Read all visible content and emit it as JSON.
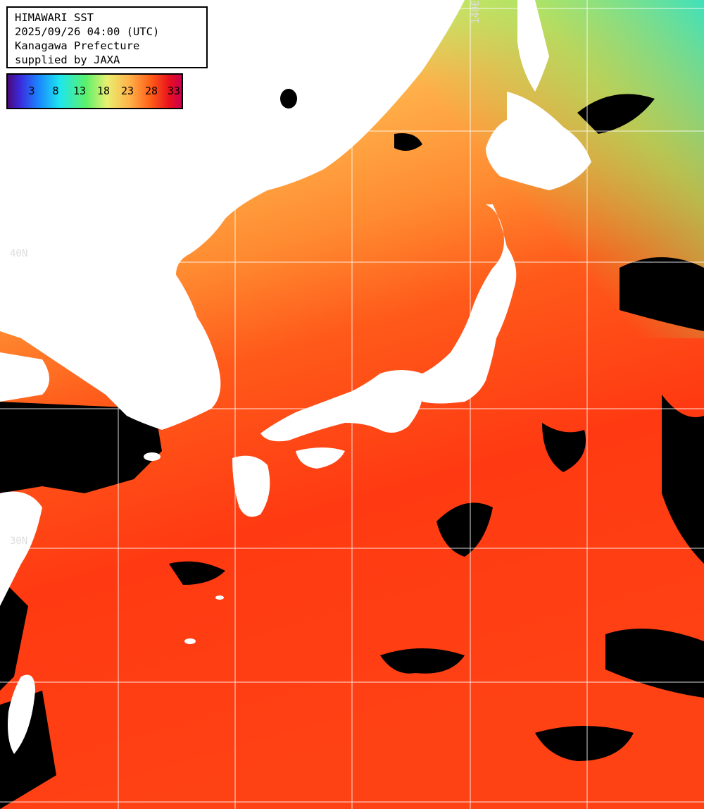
{
  "title_lines": [
    "HIMAWARI SST",
    "2025/09/26 04:00 (UTC)",
    "Kanagawa Prefecture",
    "supplied by JAXA"
  ],
  "legend": {
    "ticks": [
      "3",
      "8",
      "13",
      "18",
      "23",
      "28",
      "33"
    ]
  },
  "grid_labels": {
    "lat_40": "40N",
    "lat_30": "30N",
    "lon_140": "140E"
  },
  "colors": {
    "land": "#ffffff",
    "cloud": "#000000",
    "grid": "#ffffff"
  }
}
